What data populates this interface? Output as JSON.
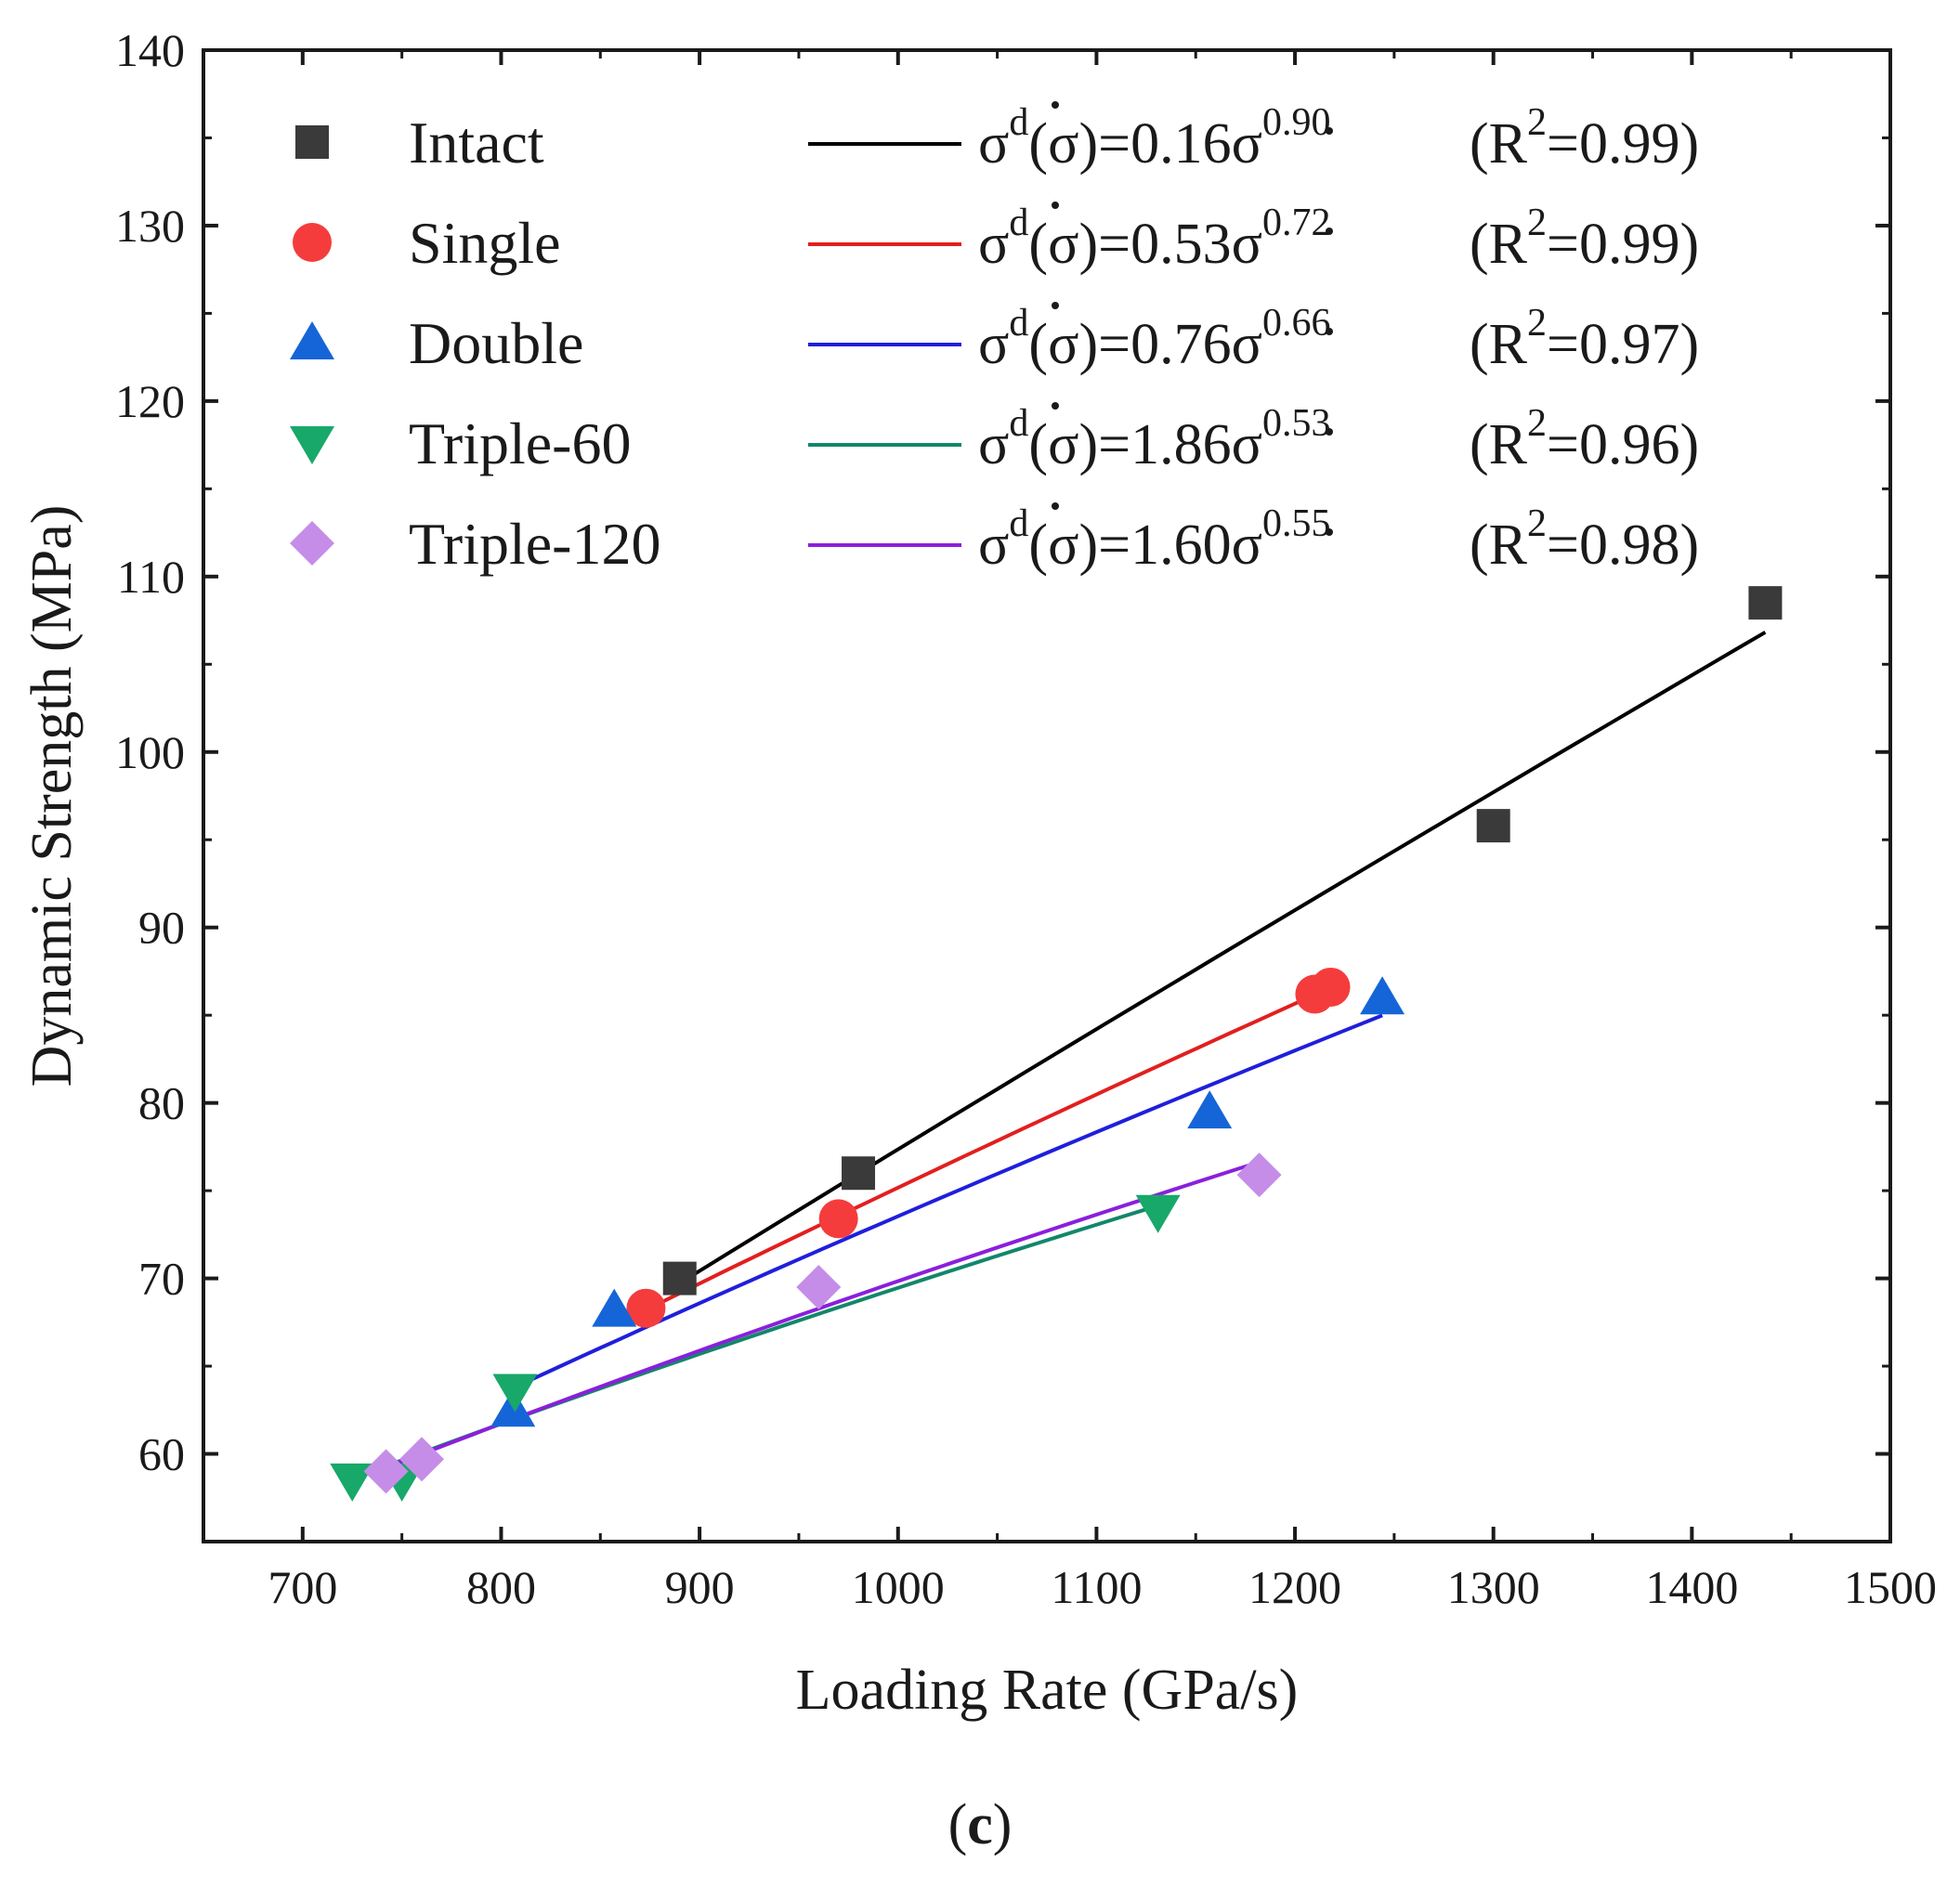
{
  "panel_label": {
    "open": "(",
    "letter": "c",
    "close": ")"
  },
  "chart_data": {
    "type": "scatter",
    "xlabel": "Loading Rate (GPa/s)",
    "ylabel": "Dynamic Strength (MPa)",
    "xlim": [
      650,
      1500
    ],
    "ylim": [
      55,
      140
    ],
    "xticks": [
      700,
      800,
      900,
      1000,
      1100,
      1200,
      1300,
      1400,
      1500
    ],
    "yticks": [
      60,
      70,
      80,
      90,
      100,
      110,
      120,
      130,
      140
    ],
    "legend_position": "top-left",
    "series": [
      {
        "name": "Intact",
        "marker": "square",
        "color": "#3a3a3a",
        "line_color": "#000000",
        "x": [
          890,
          980,
          1300,
          1437
        ],
        "y": [
          70.0,
          76.0,
          95.8,
          108.5
        ],
        "fit": {
          "a": "0.16",
          "b": "0.90",
          "r2": "0.99",
          "x_range": [
            885,
            1437
          ]
        }
      },
      {
        "name": "Single",
        "marker": "circle",
        "color": "#f53c3c",
        "line_color": "#e21f1f",
        "x": [
          873,
          970,
          1210,
          1218
        ],
        "y": [
          68.3,
          73.4,
          86.2,
          86.6
        ],
        "fit": {
          "a": "0.53",
          "b": "0.72",
          "r2": "0.99",
          "x_range": [
            875,
            1220
          ]
        }
      },
      {
        "name": "Double",
        "marker": "triangle-up",
        "color": "#1565d8",
        "line_color": "#1f1fdc",
        "x": [
          806,
          857,
          1157,
          1244
        ],
        "y": [
          62.5,
          68.2,
          79.5,
          86.0
        ],
        "fit": {
          "a": "0.76",
          "b": "0.66",
          "r2": "0.97",
          "x_range": [
            805,
            1244
          ]
        }
      },
      {
        "name": "Triple-60",
        "marker": "triangle-down",
        "color": "#17a86a",
        "line_color": "#12876a",
        "x": [
          725,
          750,
          807,
          1131
        ],
        "y": [
          58.5,
          58.5,
          63.6,
          73.8
        ],
        "fit": {
          "a": "1.86",
          "b": "0.53",
          "r2": "0.96",
          "x_range": [
            733,
            1131
          ]
        }
      },
      {
        "name": "Triple-120",
        "marker": "diamond",
        "color": "#c58de8",
        "line_color": "#8a1fdc",
        "x": [
          742,
          760,
          960,
          1182
        ],
        "y": [
          59.0,
          59.7,
          69.5,
          75.9
        ],
        "fit": {
          "a": "1.60",
          "b": "0.55",
          "r2": "0.98",
          "x_range": [
            738,
            1182
          ]
        }
      }
    ]
  },
  "legend_rows": [
    {
      "name": "Intact",
      "lhs": "σ",
      "sup_d": "d",
      "arg": "(σ)=",
      "coef": "0.16",
      "sigma": "σ",
      "exp": "0.90",
      "r_open": "(R",
      "r_sup": "2",
      "r_close": "=0.99)"
    },
    {
      "name": "Single",
      "lhs": "σ",
      "sup_d": "d",
      "arg": "(σ)=",
      "coef": "0.53",
      "sigma": "σ",
      "exp": "0.72",
      "r_open": "(R",
      "r_sup": "2",
      "r_close": "=0.99)"
    },
    {
      "name": "Double",
      "lhs": "σ",
      "sup_d": "d",
      "arg": "(σ)=",
      "coef": "0.76",
      "sigma": "σ",
      "exp": "0.66",
      "r_open": "(R",
      "r_sup": "2",
      "r_close": "=0.97)"
    },
    {
      "name": "Triple-60",
      "lhs": "σ",
      "sup_d": "d",
      "arg": "(σ)=",
      "coef": "1.86",
      "sigma": "σ",
      "exp": "0.53",
      "r_open": "(R",
      "r_sup": "2",
      "r_close": "=0.96)"
    },
    {
      "name": "Triple-120",
      "lhs": "σ",
      "sup_d": "d",
      "arg": "(σ)=",
      "coef": "1.60",
      "sigma": "σ",
      "exp": "0.55",
      "r_open": "(R",
      "r_sup": "2",
      "r_close": "=0.98)"
    }
  ]
}
